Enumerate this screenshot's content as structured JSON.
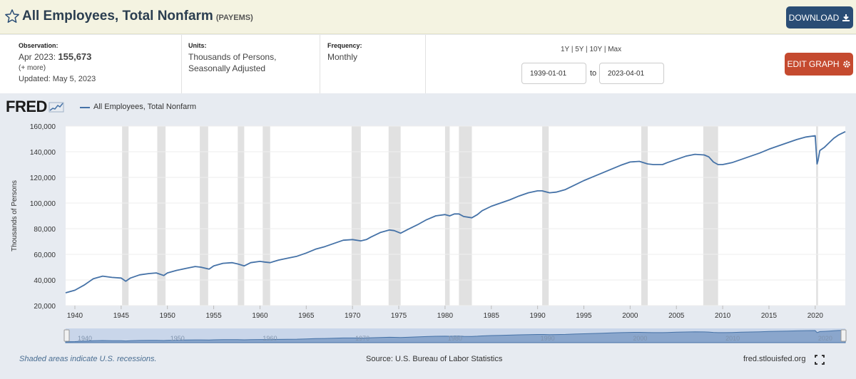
{
  "header": {
    "title": "All Employees, Total Nonfarm",
    "series_id": "(PAYEMS)",
    "download_label": "DOWNLOAD"
  },
  "meta": {
    "observation_label": "Observation:",
    "observation_date": "Apr 2023:",
    "observation_value": "155,673",
    "more_link": "(+ more)",
    "updated": "Updated: May 5, 2023",
    "units_label": "Units:",
    "units_line1": "Thousands of Persons,",
    "units_line2": "Seasonally Adjusted",
    "frequency_label": "Frequency:",
    "frequency_value": "Monthly",
    "range_links": [
      "1Y",
      "5Y",
      "10Y",
      "Max"
    ],
    "start_date": "1939-01-01",
    "to_label": "to",
    "end_date": "2023-04-01",
    "edit_label": "EDIT GRAPH"
  },
  "footer": {
    "recession_note": "Shaded areas indicate U.S. recessions.",
    "source": "Source: U.S. Bureau of Labor Statistics",
    "url": "fred.stlouisfed.org"
  },
  "colors": {
    "line": "#4572a7",
    "recession": "#e1e1e1",
    "download": "#2a4d75",
    "edit": "#c54a2f"
  },
  "chart_data": {
    "type": "line",
    "brand": "FRED",
    "legend": [
      "All Employees, Total Nonfarm"
    ],
    "ylabel": "Thousands of Persons",
    "xlabel": "",
    "xlim": [
      1939.0,
      2023.25
    ],
    "ylim": [
      20000,
      160000
    ],
    "yticks": [
      20000,
      40000,
      60000,
      80000,
      100000,
      120000,
      140000,
      160000
    ],
    "ytick_labels": [
      "20,000",
      "40,000",
      "60,000",
      "80,000",
      "100,000",
      "120,000",
      "140,000",
      "160,000"
    ],
    "xticks": [
      1940,
      1945,
      1950,
      1955,
      1960,
      1965,
      1970,
      1975,
      1980,
      1985,
      1990,
      1995,
      2000,
      2005,
      2010,
      2015,
      2020
    ],
    "xtick_labels": [
      "1940",
      "1945",
      "1950",
      "1955",
      "1960",
      "1965",
      "1970",
      "1975",
      "1980",
      "1985",
      "1990",
      "1995",
      "2000",
      "2005",
      "2010",
      "2015",
      "2020"
    ],
    "navigator_ticks": [
      "1940",
      "1950",
      "1960",
      "1970",
      "1980",
      "1990",
      "2000",
      "2010",
      "2020"
    ],
    "recessions": [
      [
        1945.1,
        1945.8
      ],
      [
        1948.9,
        1949.8
      ],
      [
        1953.5,
        1954.4
      ],
      [
        1957.6,
        1958.3
      ],
      [
        1960.3,
        1961.1
      ],
      [
        1969.9,
        1970.9
      ],
      [
        1973.9,
        1975.2
      ],
      [
        1980.0,
        1980.5
      ],
      [
        1981.5,
        1982.9
      ],
      [
        1990.5,
        1991.2
      ],
      [
        2001.2,
        2001.9
      ],
      [
        2007.9,
        2009.5
      ],
      [
        2020.1,
        2020.3
      ]
    ],
    "series": [
      {
        "name": "All Employees, Total Nonfarm",
        "x": [
          1939.0,
          1940.0,
          1941.0,
          1942.0,
          1943.0,
          1944.0,
          1945.0,
          1945.5,
          1946.0,
          1947.0,
          1948.0,
          1948.8,
          1949.6,
          1950.0,
          1951.0,
          1952.0,
          1953.0,
          1953.6,
          1954.5,
          1955.0,
          1956.0,
          1957.0,
          1957.6,
          1958.3,
          1959.0,
          1960.0,
          1960.5,
          1961.1,
          1962.0,
          1963.0,
          1964.0,
          1965.0,
          1966.0,
          1967.0,
          1968.0,
          1969.0,
          1970.0,
          1970.9,
          1971.5,
          1972.0,
          1973.0,
          1974.0,
          1974.5,
          1975.2,
          1976.0,
          1977.0,
          1978.0,
          1979.0,
          1980.0,
          1980.5,
          1981.0,
          1981.5,
          1982.0,
          1982.9,
          1983.5,
          1984.0,
          1985.0,
          1986.0,
          1987.0,
          1988.0,
          1989.0,
          1990.0,
          1990.5,
          1991.3,
          1992.0,
          1993.0,
          1994.0,
          1995.0,
          1996.0,
          1997.0,
          1998.0,
          1999.0,
          2000.0,
          2001.0,
          2001.9,
          2002.5,
          2003.5,
          2004.0,
          2005.0,
          2006.0,
          2007.0,
          2008.0,
          2008.5,
          2009.0,
          2009.5,
          2010.0,
          2011.0,
          2012.0,
          2013.0,
          2014.0,
          2015.0,
          2016.0,
          2017.0,
          2018.0,
          2019.0,
          2020.0,
          2020.2,
          2020.3,
          2020.5,
          2021.0,
          2021.5,
          2022.0,
          2022.5,
          2023.25
        ],
        "y": [
          30000,
          32000,
          36000,
          41000,
          43000,
          42000,
          41500,
          39000,
          41500,
          44000,
          45000,
          45500,
          43500,
          45500,
          47500,
          49000,
          50500,
          50000,
          48500,
          51000,
          53000,
          53500,
          52500,
          51000,
          53500,
          54500,
          54000,
          53500,
          55500,
          57000,
          58500,
          61000,
          64000,
          66000,
          68500,
          71000,
          71500,
          70500,
          71500,
          73500,
          77000,
          79000,
          78500,
          76500,
          79500,
          83000,
          87000,
          90000,
          91000,
          90000,
          91500,
          91500,
          89500,
          88500,
          91000,
          94000,
          97500,
          100000,
          102500,
          105500,
          108000,
          109500,
          109500,
          108000,
          108500,
          110500,
          114000,
          117500,
          120500,
          123500,
          126500,
          129500,
          132000,
          132500,
          130500,
          130000,
          130000,
          131500,
          134000,
          136500,
          138000,
          137500,
          136000,
          132000,
          130000,
          130000,
          131500,
          134000,
          136500,
          139000,
          142000,
          144500,
          147000,
          149500,
          151500,
          152500,
          130500,
          133000,
          141000,
          143500,
          147000,
          150500,
          153000,
          155673
        ]
      }
    ]
  }
}
